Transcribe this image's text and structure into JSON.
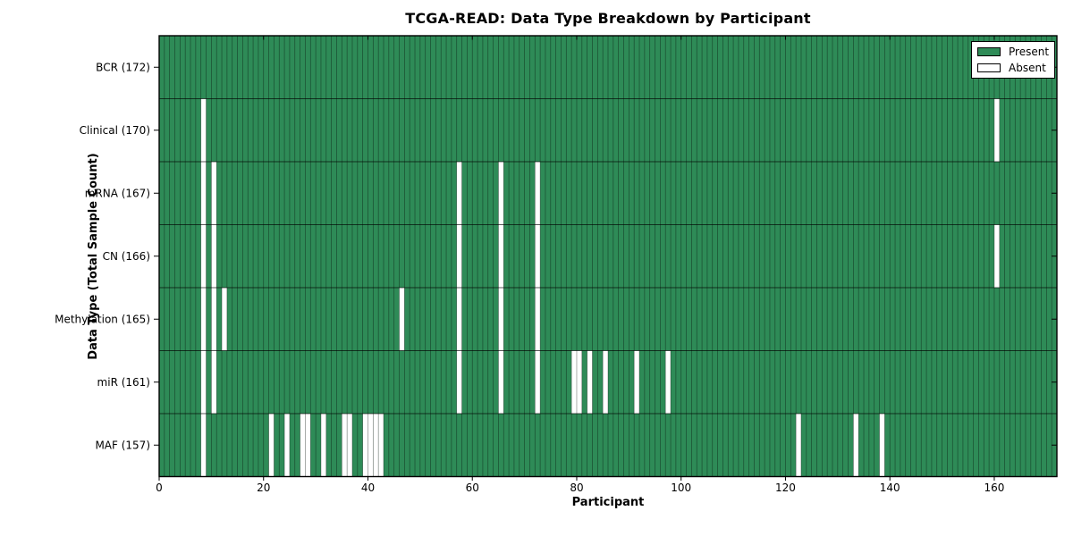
{
  "chart_data": {
    "type": "heatmap",
    "title": "TCGA-READ: Data Type Breakdown by Participant",
    "xlabel": "Participant",
    "ylabel": "Data Type (Total Sample Count)",
    "n_participants": 172,
    "x_range": [
      0,
      172
    ],
    "x_ticks": [
      0,
      20,
      40,
      60,
      80,
      100,
      120,
      140,
      160
    ],
    "grid": "cell-edges-on",
    "legend_position": "upper right",
    "colors": {
      "present": "#2e8b57",
      "absent": "#ffffff",
      "cell_edge": "rgba(0,0,0,0.45)",
      "row_separator": "rgba(0,0,0,0.65)",
      "frame": "#000000"
    },
    "legend": [
      {
        "label": "Present",
        "state": "present"
      },
      {
        "label": "Absent",
        "state": "absent"
      }
    ],
    "rows": [
      {
        "label": "BCR (172)",
        "data_type": "BCR",
        "total_samples": 172,
        "absent_participants": []
      },
      {
        "label": "Clinical (170)",
        "data_type": "Clinical",
        "total_samples": 170,
        "absent_participants": [
          8,
          160
        ]
      },
      {
        "label": "mRNA (167)",
        "data_type": "mRNA",
        "total_samples": 167,
        "absent_participants": [
          8,
          10,
          57,
          65,
          72
        ]
      },
      {
        "label": "CN (166)",
        "data_type": "CN",
        "total_samples": 166,
        "absent_participants": [
          8,
          10,
          57,
          65,
          72,
          160
        ]
      },
      {
        "label": "Methylation (165)",
        "data_type": "Methylation",
        "total_samples": 165,
        "absent_participants": [
          8,
          10,
          12,
          46,
          57,
          65,
          72
        ]
      },
      {
        "label": "miR (161)",
        "data_type": "miR",
        "total_samples": 161,
        "absent_participants": [
          8,
          10,
          57,
          65,
          72,
          79,
          80,
          82,
          85,
          91,
          97
        ]
      },
      {
        "label": "MAF (157)",
        "data_type": "MAF",
        "total_samples": 157,
        "absent_participants": [
          8,
          21,
          24,
          27,
          28,
          31,
          35,
          36,
          39,
          40,
          41,
          42,
          122,
          133,
          138
        ]
      }
    ]
  }
}
